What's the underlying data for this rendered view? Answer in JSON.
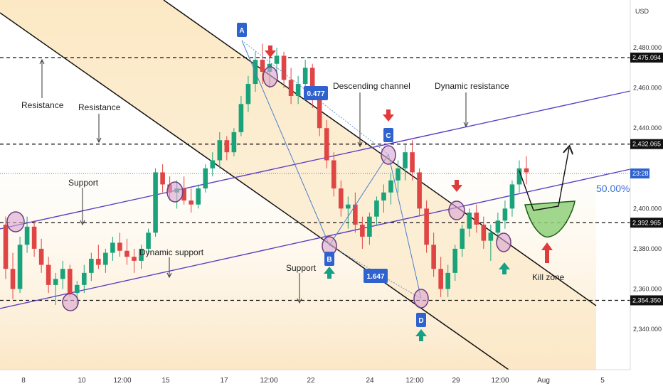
{
  "currency": "USD",
  "chart_data": {
    "type": "candlestick",
    "title": "",
    "x_tick_labels": [
      "8",
      "10",
      "12:00",
      "15",
      "17",
      "12:00",
      "22",
      "24",
      "12:00",
      "29",
      "12:00",
      "Aug",
      "5"
    ],
    "y_tick_labels": [
      "2,480.000",
      "2,460.000",
      "2,440.000",
      "2,400.000",
      "2,380.000",
      "2,360.000",
      "2,340.000"
    ],
    "ylim": [
      2328,
      2496
    ],
    "grid": false,
    "current_price_label": "23:28",
    "current_price": 2418,
    "level_labels": [
      "2,475.094",
      "2,432.065",
      "2,392.965",
      "2,354.350"
    ],
    "levels": [
      2475.094,
      2432.065,
      2392.965,
      2354.35
    ],
    "pattern_points": [
      "A",
      "B",
      "C",
      "D"
    ],
    "pattern_prices": {
      "A": 2482,
      "B": 2383,
      "C": 2431,
      "D": 2357
    },
    "ratios": [
      "0.477",
      "1.647"
    ],
    "fib_label": "50.00%",
    "annotations": [
      "Resistance",
      "Resistance",
      "Descending channel",
      "Dynamic resistance",
      "Support",
      "Dynamic support",
      "Support",
      "Kill zone"
    ],
    "candles_ohlc": [
      [
        2392,
        2396,
        2365,
        2370
      ],
      [
        2370,
        2378,
        2355,
        2360
      ],
      [
        2360,
        2386,
        2358,
        2382
      ],
      [
        2382,
        2396,
        2378,
        2391
      ],
      [
        2391,
        2394,
        2376,
        2380
      ],
      [
        2380,
        2385,
        2368,
        2372
      ],
      [
        2372,
        2376,
        2358,
        2362
      ],
      [
        2362,
        2368,
        2352,
        2365
      ],
      [
        2365,
        2374,
        2360,
        2370
      ],
      [
        2370,
        2372,
        2356,
        2358
      ],
      [
        2358,
        2364,
        2352,
        2362
      ],
      [
        2362,
        2372,
        2358,
        2368
      ],
      [
        2368,
        2378,
        2364,
        2375
      ],
      [
        2375,
        2382,
        2370,
        2372
      ],
      [
        2372,
        2380,
        2368,
        2378
      ],
      [
        2378,
        2386,
        2374,
        2383
      ],
      [
        2383,
        2388,
        2376,
        2379
      ],
      [
        2379,
        2385,
        2372,
        2376
      ],
      [
        2376,
        2380,
        2368,
        2374
      ],
      [
        2374,
        2382,
        2370,
        2380
      ],
      [
        2380,
        2390,
        2378,
        2388
      ],
      [
        2388,
        2420,
        2386,
        2418
      ],
      [
        2418,
        2422,
        2408,
        2412
      ],
      [
        2412,
        2416,
        2404,
        2408
      ],
      [
        2408,
        2414,
        2400,
        2410
      ],
      [
        2410,
        2416,
        2402,
        2404
      ],
      [
        2404,
        2410,
        2398,
        2402
      ],
      [
        2402,
        2412,
        2400,
        2410
      ],
      [
        2410,
        2422,
        2408,
        2420
      ],
      [
        2420,
        2428,
        2416,
        2424
      ],
      [
        2424,
        2438,
        2420,
        2434
      ],
      [
        2434,
        2436,
        2424,
        2428
      ],
      [
        2428,
        2440,
        2426,
        2438
      ],
      [
        2438,
        2456,
        2436,
        2452
      ],
      [
        2452,
        2466,
        2448,
        2462
      ],
      [
        2462,
        2478,
        2458,
        2474
      ],
      [
        2474,
        2482,
        2462,
        2468
      ],
      [
        2468,
        2476,
        2460,
        2472
      ],
      [
        2472,
        2480,
        2466,
        2476
      ],
      [
        2476,
        2478,
        2460,
        2464
      ],
      [
        2464,
        2470,
        2452,
        2456
      ],
      [
        2456,
        2466,
        2452,
        2462
      ],
      [
        2462,
        2474,
        2460,
        2470
      ],
      [
        2470,
        2472,
        2450,
        2454
      ],
      [
        2454,
        2458,
        2436,
        2440
      ],
      [
        2440,
        2444,
        2420,
        2424
      ],
      [
        2424,
        2428,
        2406,
        2410
      ],
      [
        2410,
        2414,
        2396,
        2400
      ],
      [
        2400,
        2406,
        2390,
        2402
      ],
      [
        2402,
        2408,
        2388,
        2392
      ],
      [
        2392,
        2396,
        2380,
        2386
      ],
      [
        2386,
        2398,
        2382,
        2396
      ],
      [
        2396,
        2406,
        2392,
        2404
      ],
      [
        2404,
        2412,
        2398,
        2408
      ],
      [
        2408,
        2418,
        2402,
        2414
      ],
      [
        2414,
        2424,
        2408,
        2420
      ],
      [
        2420,
        2432,
        2414,
        2428
      ],
      [
        2428,
        2434,
        2414,
        2418
      ],
      [
        2418,
        2420,
        2396,
        2400
      ],
      [
        2400,
        2404,
        2378,
        2382
      ],
      [
        2382,
        2388,
        2366,
        2370
      ],
      [
        2370,
        2376,
        2356,
        2360
      ],
      [
        2360,
        2372,
        2356,
        2368
      ],
      [
        2368,
        2382,
        2364,
        2380
      ],
      [
        2380,
        2392,
        2376,
        2390
      ],
      [
        2390,
        2400,
        2386,
        2398
      ],
      [
        2398,
        2402,
        2388,
        2392
      ],
      [
        2392,
        2396,
        2380,
        2384
      ],
      [
        2384,
        2392,
        2374,
        2388
      ],
      [
        2388,
        2398,
        2384,
        2394
      ],
      [
        2394,
        2404,
        2390,
        2400
      ],
      [
        2400,
        2414,
        2396,
        2412
      ],
      [
        2412,
        2424,
        2408,
        2420
      ],
      [
        2420,
        2426,
        2412,
        2418
      ]
    ]
  }
}
